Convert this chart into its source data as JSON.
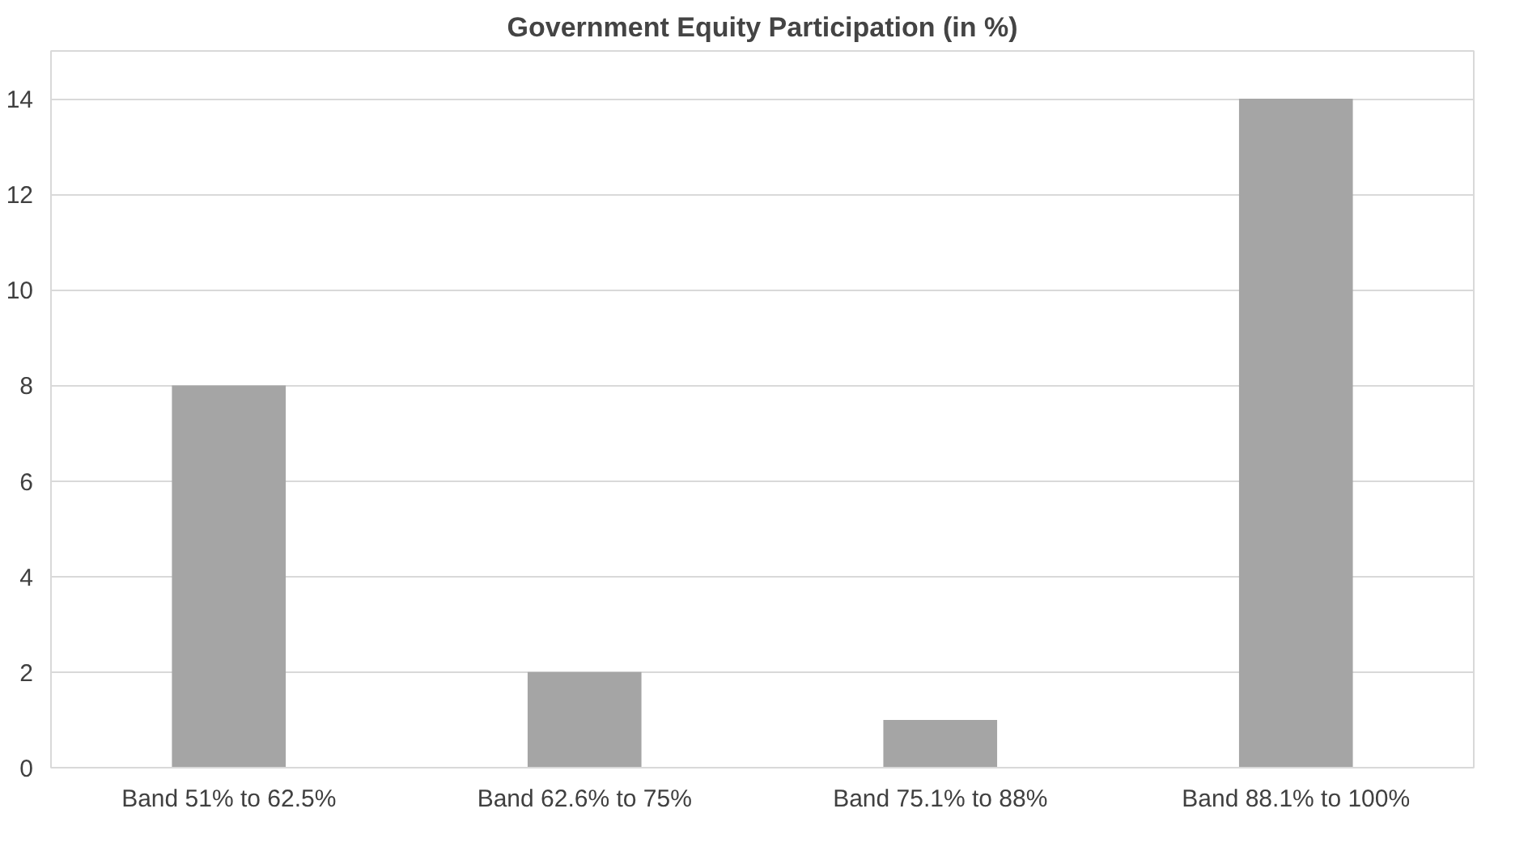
{
  "chart_data": {
    "type": "bar",
    "title": "Government Equity Participation (in %)",
    "categories": [
      "Band 51% to 62.5%",
      "Band 62.6% to 75%",
      "Band 75.1% to 88%",
      "Band 88.1% to 100%"
    ],
    "values": [
      8,
      2,
      1,
      14
    ],
    "color": "#a5a5a5",
    "ylim": [
      0,
      15
    ],
    "yticks": [
      0,
      2,
      4,
      6,
      8,
      10,
      12,
      14
    ],
    "grid": "y",
    "legend": false
  }
}
